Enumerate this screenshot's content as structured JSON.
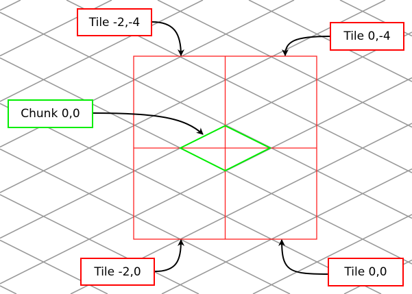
{
  "colors": {
    "grid": "#999999",
    "tile_bounds": "#ff2020",
    "chunk": "#00ee00",
    "arrow": "#000000"
  },
  "labels": {
    "tile_m2_m4": "Tile -2,-4",
    "tile_0_m4": "Tile 0,-4",
    "chunk_0_0": "Chunk 0,0",
    "tile_m2_0": "Tile -2,0",
    "tile_0_0": "Tile 0,0"
  }
}
